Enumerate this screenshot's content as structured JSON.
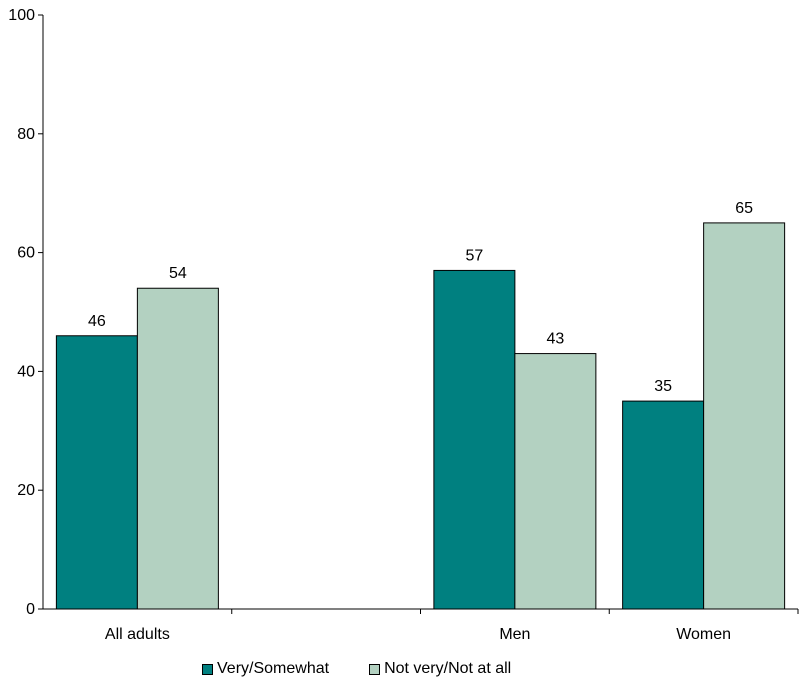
{
  "chart_data": {
    "type": "bar",
    "title": "",
    "xlabel": "",
    "ylabel": "",
    "categories": [
      "All adults",
      "",
      "Men",
      "Women"
    ],
    "series": [
      {
        "name": "Very/Somewhat",
        "color": "#008080",
        "values": [
          46,
          null,
          57,
          35
        ]
      },
      {
        "name": "Not very/Not at all",
        "color": "#b3d1c1",
        "values": [
          54,
          null,
          43,
          65
        ]
      }
    ],
    "ylim": [
      0,
      100
    ],
    "yticks": [
      0,
      20,
      40,
      60,
      80,
      100
    ],
    "grid": false,
    "legend_position": "bottom"
  }
}
